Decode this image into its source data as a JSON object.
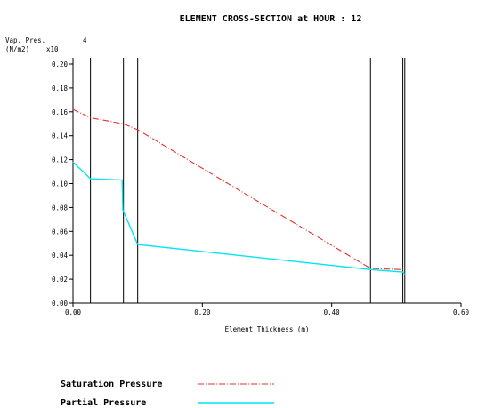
{
  "chart_data": {
    "type": "line",
    "title": "ELEMENT CROSS-SECTION at HOUR : 12",
    "ylabel_line1": "Vap. Pres.",
    "ylabel_line2": "(N/m2)",
    "y_multiplier": "x10",
    "y_exponent": "4",
    "xlabel": "Element Thickness (m)",
    "xlim": [
      0,
      0.6
    ],
    "ylim": [
      0,
      0.2
    ],
    "x_ticks": [
      "0.00",
      "0.20",
      "0.40",
      "0.60"
    ],
    "y_ticks": [
      "0.00",
      "0.02",
      "0.04",
      "0.06",
      "0.08",
      "0.10",
      "0.12",
      "0.14",
      "0.16",
      "0.18",
      "0.20"
    ],
    "layer_boundaries": [
      0,
      0.027,
      0.078,
      0.1,
      0.46,
      0.51,
      0.513
    ],
    "grid": false,
    "legend_position": "bottom-left",
    "series": [
      {
        "name": "Saturation Pressure",
        "color": "#e03030",
        "style": "dash-dot",
        "x": [
          0,
          0.027,
          0.078,
          0.1,
          0.46,
          0.51,
          0.513
        ],
        "y": [
          0.162,
          0.155,
          0.15,
          0.145,
          0.029,
          0.028,
          0.028
        ]
      },
      {
        "name": "Partial Pressure",
        "color": "#00e5f0",
        "style": "solid",
        "x": [
          0,
          0.027,
          0.076,
          0.077,
          0.1,
          0.46,
          0.51,
          0.513
        ],
        "y": [
          0.118,
          0.104,
          0.103,
          0.078,
          0.049,
          0.028,
          0.026,
          0.024
        ]
      }
    ]
  }
}
